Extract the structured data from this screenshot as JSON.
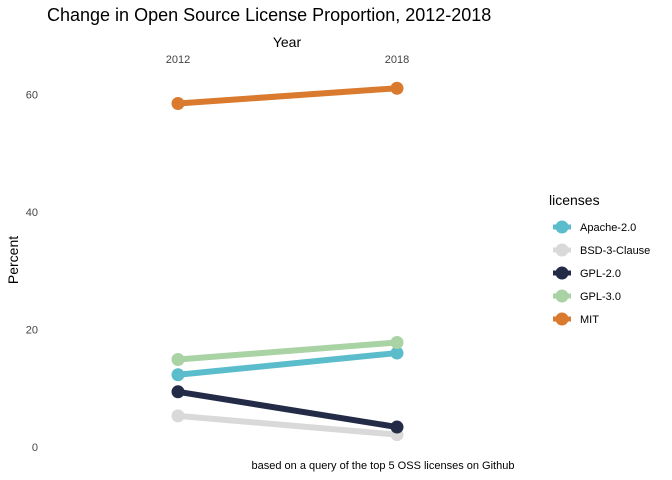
{
  "chart_data": {
    "type": "line",
    "title": "Change in Open Source License Proportion, 2012-2018",
    "xlabel": "Year",
    "ylabel": "Percent",
    "caption": "based on a query of the top 5 OSS licenses on Github",
    "x": [
      "2012",
      "2018"
    ],
    "y_ticks": [
      0,
      20,
      40,
      60
    ],
    "ylim": [
      0,
      62.5
    ],
    "grid": false,
    "legend": {
      "title": "licenses",
      "position": "right"
    },
    "series": [
      {
        "name": "Apache-2.0",
        "values": [
          12.3,
          16.0
        ],
        "color": "#5bbccb"
      },
      {
        "name": "BSD-3-Clause",
        "values": [
          5.3,
          2.1
        ],
        "color": "#d9d9d9"
      },
      {
        "name": "GPL-2.0",
        "values": [
          9.4,
          3.4
        ],
        "color": "#232b47"
      },
      {
        "name": "GPL-3.0",
        "values": [
          14.9,
          17.8
        ],
        "color": "#a9d3a5"
      },
      {
        "name": "MIT",
        "values": [
          58.5,
          61.1
        ],
        "color": "#d97a2f"
      }
    ]
  }
}
